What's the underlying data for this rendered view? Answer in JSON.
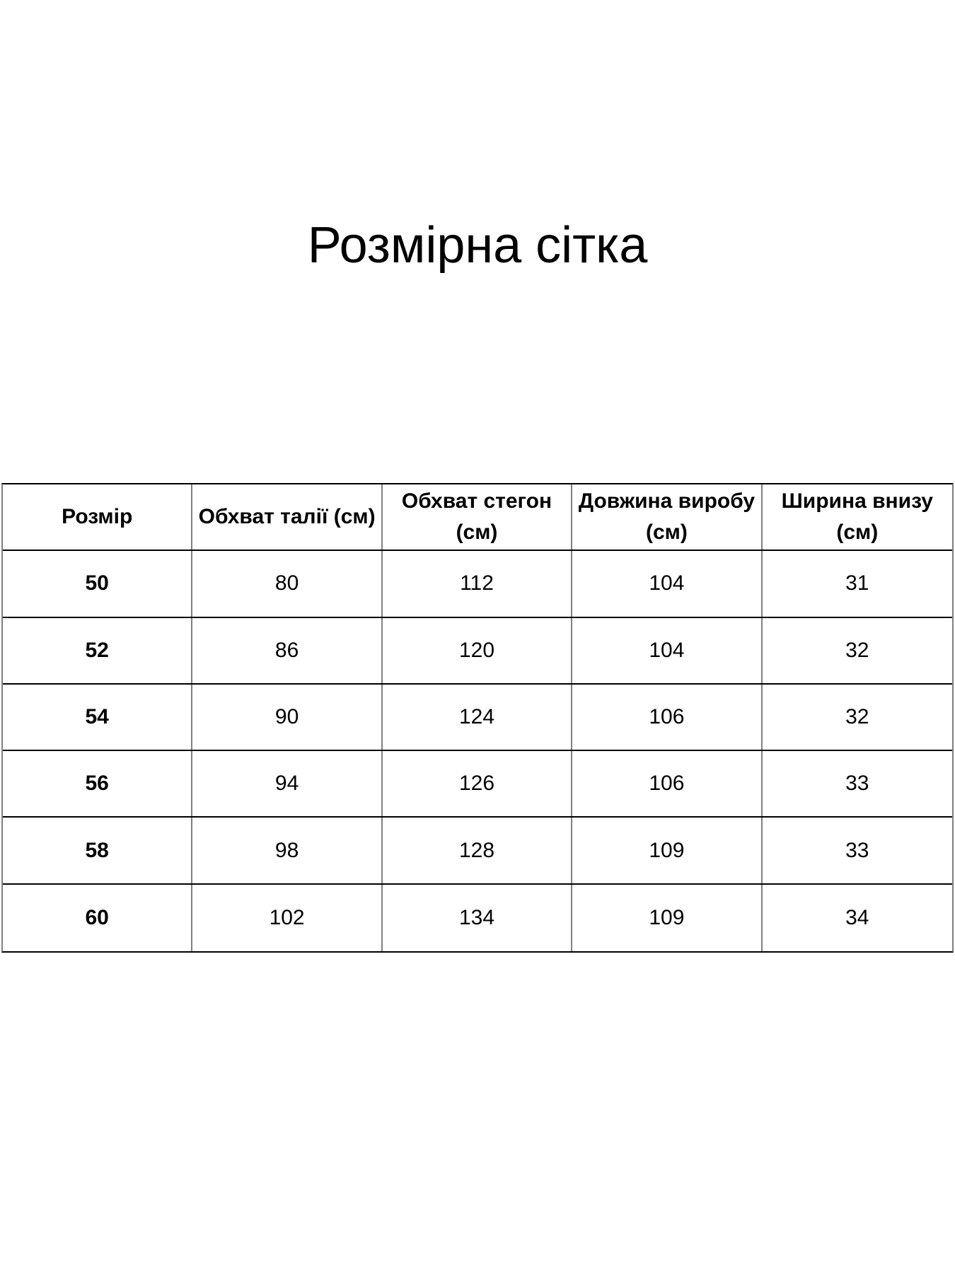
{
  "page": {
    "title": "Розмірна сітка"
  },
  "colors": {
    "background": "#ffffff",
    "text": "#000000",
    "horizontal_border": "#000000",
    "vertical_border": "#808080"
  },
  "table": {
    "headers": [
      {
        "lines": [
          "Розмір"
        ]
      },
      {
        "lines": [
          "Обхват талії (см)"
        ]
      },
      {
        "lines": [
          "Обхват стегон",
          "(см)"
        ]
      },
      {
        "lines": [
          "Довжина виробу",
          "(см)"
        ]
      },
      {
        "lines": [
          "Ширина внизу",
          "(см)"
        ]
      }
    ],
    "rows": [
      {
        "cells": [
          "50",
          "80",
          "112",
          "104",
          "31"
        ]
      },
      {
        "cells": [
          "52",
          "86",
          "120",
          "104",
          "32"
        ]
      },
      {
        "cells": [
          "54",
          "90",
          "124",
          "106",
          "32"
        ]
      },
      {
        "cells": [
          "56",
          "94",
          "126",
          "106",
          "33"
        ]
      },
      {
        "cells": [
          "58",
          "98",
          "128",
          "109",
          "33"
        ]
      },
      {
        "cells": [
          "60",
          "102",
          "134",
          "109",
          "34"
        ]
      }
    ]
  }
}
